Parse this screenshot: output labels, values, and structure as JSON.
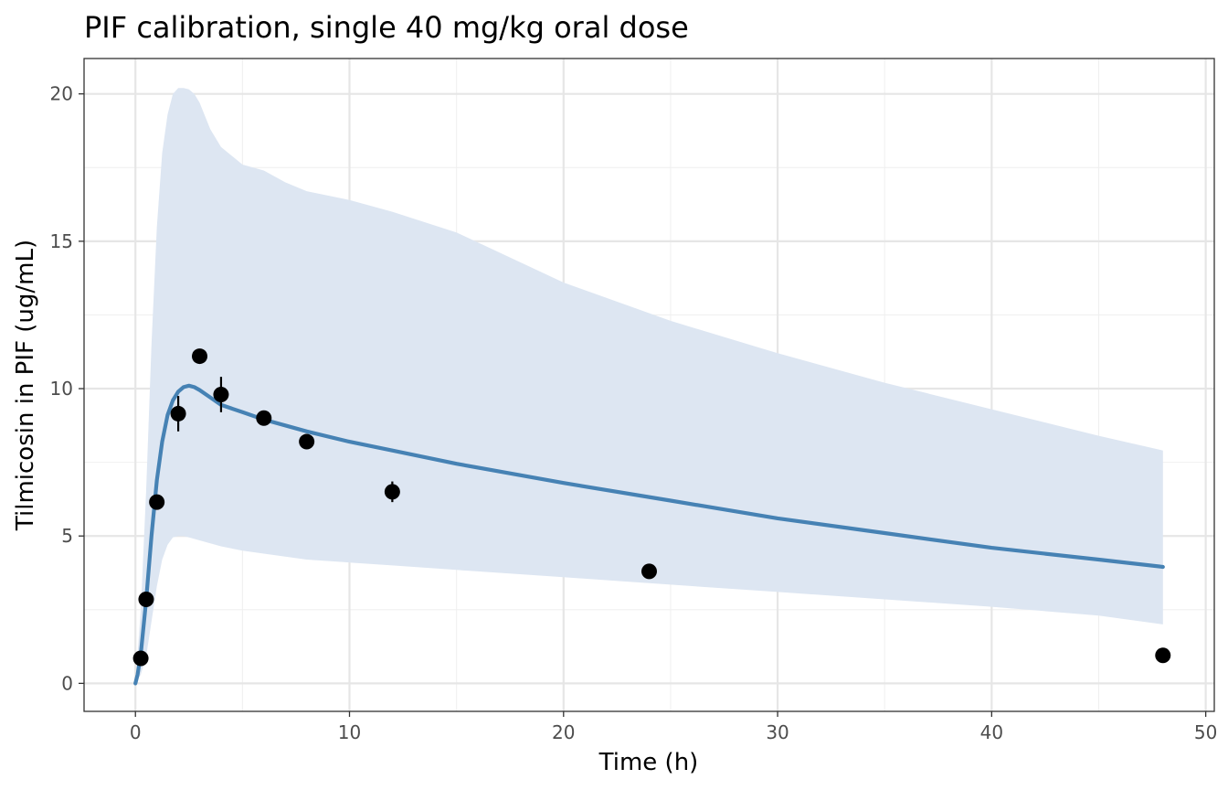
{
  "chart_data": {
    "type": "line",
    "title": "PIF calibration, single 40 mg/kg oral dose",
    "xlabel": "Time (h)",
    "ylabel": "Tilmicosin in PIF (ug/mL)",
    "xlim": [
      -2.4,
      50.4
    ],
    "ylim": [
      -0.95,
      21.2
    ],
    "x_ticks": [
      0,
      10,
      20,
      30,
      40,
      50
    ],
    "y_ticks": [
      0,
      5,
      10,
      15,
      20
    ],
    "grid": true,
    "legend": "none",
    "colors": {
      "line": "#4682b4",
      "band": "#dde6f2",
      "points": "#000000",
      "grid_major": "#e6e6e6",
      "grid_minor": "#f0f0f0",
      "panel_border": "#333333"
    },
    "series": [
      {
        "type": "line",
        "x": [
          0,
          0.1,
          0.25,
          0.5,
          0.75,
          1,
          1.25,
          1.5,
          1.75,
          2,
          2.25,
          2.5,
          2.75,
          3,
          3.5,
          4,
          5,
          6,
          7,
          8,
          10,
          12,
          15,
          20,
          25,
          30,
          35,
          40,
          45,
          48
        ],
        "y": [
          0,
          0.3,
          1.0,
          2.8,
          5.0,
          6.9,
          8.2,
          9.1,
          9.6,
          9.9,
          10.05,
          10.1,
          10.05,
          9.95,
          9.7,
          9.45,
          9.2,
          8.95,
          8.75,
          8.55,
          8.2,
          7.9,
          7.45,
          6.8,
          6.2,
          5.6,
          5.1,
          4.6,
          4.2,
          3.95
        ]
      },
      {
        "type": "band",
        "x": [
          0,
          0.25,
          0.5,
          0.75,
          1,
          1.25,
          1.5,
          1.75,
          2,
          2.25,
          2.5,
          2.75,
          3,
          3.5,
          4,
          5,
          6,
          7,
          8,
          10,
          12,
          15,
          20,
          25,
          30,
          35,
          40,
          45,
          48
        ],
        "lower": [
          0,
          0.3,
          0.9,
          2.1,
          3.3,
          4.2,
          4.7,
          4.95,
          5.0,
          5.0,
          4.95,
          4.9,
          4.85,
          4.75,
          4.65,
          4.5,
          4.4,
          4.3,
          4.2,
          4.1,
          4.0,
          3.85,
          3.6,
          3.35,
          3.1,
          2.85,
          2.6,
          2.3,
          2.0
        ],
        "upper": [
          0,
          2.5,
          6.5,
          11.5,
          15.5,
          18.0,
          19.3,
          20.0,
          20.2,
          20.2,
          20.15,
          20.0,
          19.7,
          18.8,
          18.2,
          17.6,
          17.4,
          17.0,
          16.7,
          16.4,
          16.0,
          15.3,
          13.6,
          12.3,
          11.2,
          10.2,
          9.3,
          8.4,
          7.9
        ]
      },
      {
        "type": "scatter",
        "x": [
          0.25,
          0.5,
          1,
          2,
          3,
          4,
          6,
          8,
          12,
          24,
          48
        ],
        "y": [
          0.85,
          2.85,
          6.15,
          9.15,
          11.1,
          9.8,
          9.0,
          8.2,
          6.5,
          3.8,
          0.95
        ],
        "err": [
          0,
          0,
          0.05,
          0.6,
          0.1,
          0.6,
          0.1,
          0.1,
          0.35,
          0.1,
          0.05
        ]
      }
    ]
  }
}
